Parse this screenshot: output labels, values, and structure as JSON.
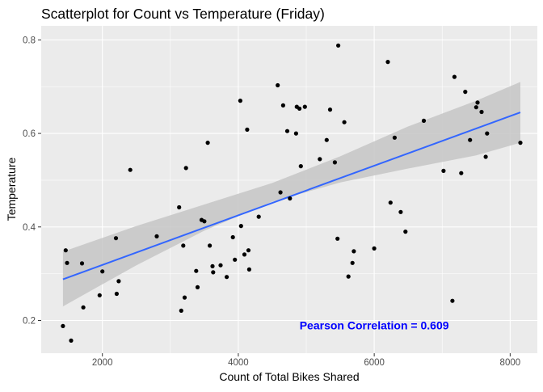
{
  "chart_data": {
    "type": "scatter",
    "title": "Scatterplot for Count vs Temperature (Friday)",
    "xlabel": "Count of Total Bikes Shared",
    "ylabel": "Temperature",
    "xlim": [
      1100,
      8400
    ],
    "ylim": [
      0.13,
      0.83
    ],
    "x_ticks": [
      2000,
      4000,
      6000,
      8000
    ],
    "y_ticks": [
      0.2,
      0.4,
      0.6,
      0.8
    ],
    "x_tick_labels": [
      "2000",
      "4000",
      "6000",
      "8000"
    ],
    "y_tick_labels": [
      "0.2",
      "0.4",
      "0.6",
      "0.8"
    ],
    "grid": true,
    "annotation": {
      "text": "Pearson Correlation = 0.609",
      "x": 6000,
      "y": 0.19,
      "color": "#0000ff"
    },
    "colors": {
      "panel": "#ebebeb",
      "grid_major": "#ffffff",
      "point": "#000000",
      "fit_line": "#3366ff",
      "ribbon": "#c6c6c6"
    },
    "regression": {
      "method": "lm",
      "x": [
        1420,
        8150
      ],
      "fit": [
        0.288,
        0.645
      ],
      "band_x": [
        1420,
        2500,
        3500,
        4500,
        5500,
        6500,
        7500,
        8150
      ],
      "band_lower": [
        0.23,
        0.318,
        0.392,
        0.454,
        0.495,
        0.525,
        0.553,
        0.58
      ],
      "band_upper": [
        0.347,
        0.402,
        0.448,
        0.494,
        0.551,
        0.615,
        0.67,
        0.71
      ]
    },
    "points": [
      {
        "x": 1420,
        "y": 0.188
      },
      {
        "x": 1460,
        "y": 0.35
      },
      {
        "x": 1480,
        "y": 0.323
      },
      {
        "x": 1540,
        "y": 0.157
      },
      {
        "x": 1700,
        "y": 0.322
      },
      {
        "x": 1720,
        "y": 0.228
      },
      {
        "x": 1960,
        "y": 0.254
      },
      {
        "x": 2000,
        "y": 0.305
      },
      {
        "x": 2200,
        "y": 0.376
      },
      {
        "x": 2210,
        "y": 0.257
      },
      {
        "x": 2240,
        "y": 0.284
      },
      {
        "x": 2410,
        "y": 0.522
      },
      {
        "x": 2800,
        "y": 0.38
      },
      {
        "x": 3130,
        "y": 0.442
      },
      {
        "x": 3160,
        "y": 0.221
      },
      {
        "x": 3190,
        "y": 0.36
      },
      {
        "x": 3210,
        "y": 0.249
      },
      {
        "x": 3230,
        "y": 0.526
      },
      {
        "x": 3380,
        "y": 0.306
      },
      {
        "x": 3400,
        "y": 0.271
      },
      {
        "x": 3460,
        "y": 0.415
      },
      {
        "x": 3500,
        "y": 0.412
      },
      {
        "x": 3550,
        "y": 0.58
      },
      {
        "x": 3580,
        "y": 0.36
      },
      {
        "x": 3620,
        "y": 0.316
      },
      {
        "x": 3630,
        "y": 0.303
      },
      {
        "x": 3740,
        "y": 0.318
      },
      {
        "x": 3830,
        "y": 0.293
      },
      {
        "x": 3920,
        "y": 0.378
      },
      {
        "x": 3950,
        "y": 0.33
      },
      {
        "x": 4030,
        "y": 0.67
      },
      {
        "x": 4040,
        "y": 0.402
      },
      {
        "x": 4090,
        "y": 0.341
      },
      {
        "x": 4130,
        "y": 0.608
      },
      {
        "x": 4150,
        "y": 0.35
      },
      {
        "x": 4160,
        "y": 0.309
      },
      {
        "x": 4300,
        "y": 0.422
      },
      {
        "x": 4580,
        "y": 0.703
      },
      {
        "x": 4620,
        "y": 0.474
      },
      {
        "x": 4660,
        "y": 0.66
      },
      {
        "x": 4720,
        "y": 0.605
      },
      {
        "x": 4760,
        "y": 0.461
      },
      {
        "x": 4850,
        "y": 0.6
      },
      {
        "x": 4860,
        "y": 0.657
      },
      {
        "x": 4900,
        "y": 0.653
      },
      {
        "x": 4920,
        "y": 0.53
      },
      {
        "x": 4980,
        "y": 0.657
      },
      {
        "x": 5200,
        "y": 0.545
      },
      {
        "x": 5300,
        "y": 0.586
      },
      {
        "x": 5350,
        "y": 0.651
      },
      {
        "x": 5420,
        "y": 0.538
      },
      {
        "x": 5460,
        "y": 0.375
      },
      {
        "x": 5470,
        "y": 0.788
      },
      {
        "x": 5560,
        "y": 0.624
      },
      {
        "x": 5620,
        "y": 0.294
      },
      {
        "x": 5680,
        "y": 0.323
      },
      {
        "x": 5700,
        "y": 0.348
      },
      {
        "x": 6000,
        "y": 0.354
      },
      {
        "x": 6200,
        "y": 0.753
      },
      {
        "x": 6240,
        "y": 0.452
      },
      {
        "x": 6300,
        "y": 0.591
      },
      {
        "x": 6390,
        "y": 0.432
      },
      {
        "x": 6460,
        "y": 0.39
      },
      {
        "x": 6730,
        "y": 0.627
      },
      {
        "x": 7020,
        "y": 0.52
      },
      {
        "x": 7150,
        "y": 0.242
      },
      {
        "x": 7180,
        "y": 0.721
      },
      {
        "x": 7280,
        "y": 0.515
      },
      {
        "x": 7340,
        "y": 0.689
      },
      {
        "x": 7410,
        "y": 0.586
      },
      {
        "x": 7500,
        "y": 0.656
      },
      {
        "x": 7520,
        "y": 0.666
      },
      {
        "x": 7580,
        "y": 0.646
      },
      {
        "x": 7640,
        "y": 0.55
      },
      {
        "x": 7660,
        "y": 0.6
      },
      {
        "x": 8150,
        "y": 0.58
      }
    ]
  }
}
